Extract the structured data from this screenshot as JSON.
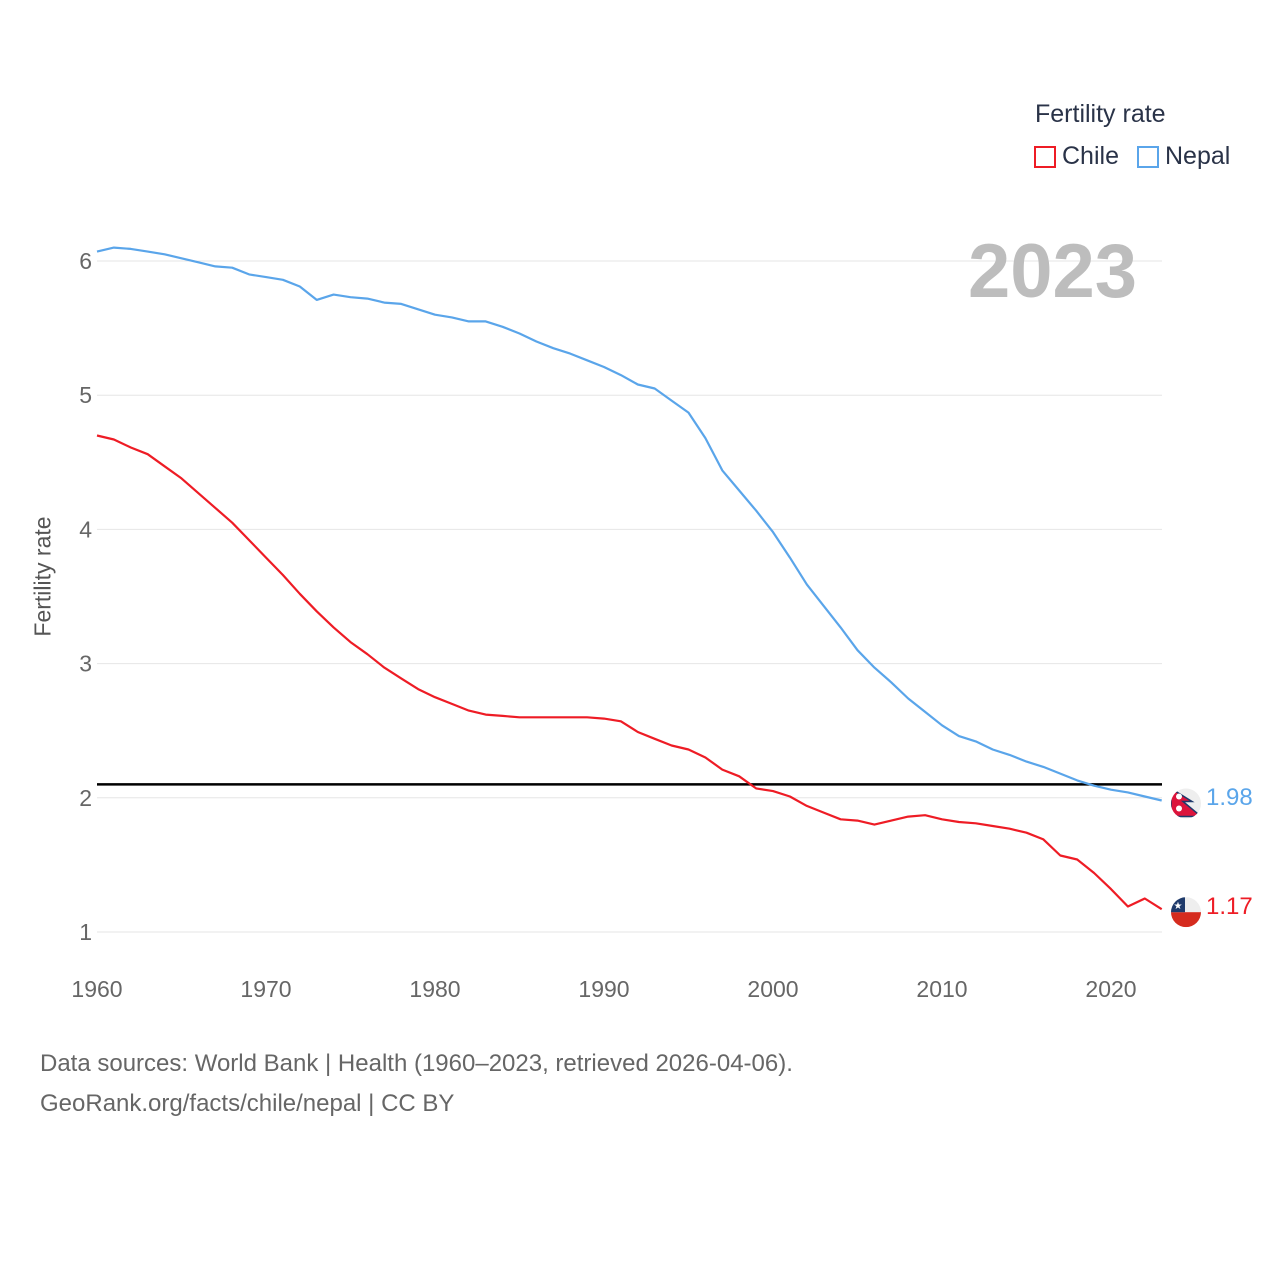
{
  "chart_data": {
    "type": "line",
    "title": "Fertility rate",
    "ylabel": "Fertility rate",
    "xlabel": "",
    "xlim": [
      1960,
      2023
    ],
    "ylim": [
      0.7,
      6.4
    ],
    "x_ticks": [
      1960,
      1970,
      1980,
      1990,
      2000,
      2010,
      2020
    ],
    "y_ticks": [
      1,
      2,
      3,
      4,
      5,
      6
    ],
    "grid": true,
    "legend_placement": "top-right",
    "current_year": "2023",
    "reference_line": 2.1,
    "x": [
      1960,
      1961,
      1962,
      1963,
      1964,
      1965,
      1966,
      1967,
      1968,
      1969,
      1970,
      1971,
      1972,
      1973,
      1974,
      1975,
      1976,
      1977,
      1978,
      1979,
      1980,
      1981,
      1982,
      1983,
      1984,
      1985,
      1986,
      1987,
      1988,
      1989,
      1990,
      1991,
      1992,
      1993,
      1994,
      1995,
      1996,
      1997,
      1998,
      1999,
      2000,
      2001,
      2002,
      2003,
      2004,
      2005,
      2006,
      2007,
      2008,
      2009,
      2010,
      2011,
      2012,
      2013,
      2014,
      2015,
      2016,
      2017,
      2018,
      2019,
      2020,
      2021,
      2022,
      2023
    ],
    "series": [
      {
        "name": "Chile",
        "color": "#ee1c25",
        "end_label": "1.17",
        "values": [
          4.7,
          4.67,
          4.61,
          4.56,
          4.47,
          4.38,
          4.27,
          4.16,
          4.05,
          3.92,
          3.79,
          3.66,
          3.52,
          3.39,
          3.27,
          3.16,
          3.07,
          2.97,
          2.89,
          2.81,
          2.75,
          2.7,
          2.65,
          2.62,
          2.61,
          2.6,
          2.6,
          2.6,
          2.6,
          2.6,
          2.59,
          2.57,
          2.49,
          2.44,
          2.39,
          2.36,
          2.3,
          2.21,
          2.16,
          2.07,
          2.05,
          2.01,
          1.94,
          1.89,
          1.84,
          1.83,
          1.8,
          1.83,
          1.86,
          1.87,
          1.84,
          1.82,
          1.81,
          1.79,
          1.77,
          1.74,
          1.69,
          1.57,
          1.54,
          1.44,
          1.32,
          1.19,
          1.25,
          1.17
        ]
      },
      {
        "name": "Nepal",
        "color": "#5aa5ea",
        "end_label": "1.98",
        "values": [
          6.07,
          6.1,
          6.09,
          6.07,
          6.05,
          6.02,
          5.99,
          5.96,
          5.95,
          5.9,
          5.88,
          5.86,
          5.81,
          5.71,
          5.75,
          5.73,
          5.72,
          5.69,
          5.68,
          5.64,
          5.6,
          5.58,
          5.55,
          5.55,
          5.51,
          5.46,
          5.4,
          5.35,
          5.31,
          5.26,
          5.21,
          5.15,
          5.08,
          5.05,
          4.96,
          4.87,
          4.68,
          4.44,
          4.29,
          4.14,
          3.98,
          3.79,
          3.59,
          3.43,
          3.27,
          3.1,
          2.97,
          2.86,
          2.74,
          2.64,
          2.54,
          2.46,
          2.42,
          2.36,
          2.32,
          2.27,
          2.23,
          2.18,
          2.13,
          2.09,
          2.06,
          2.04,
          2.01,
          1.98
        ]
      }
    ]
  },
  "footer": {
    "line1": "Data sources: World Bank | Health (1960–2023, retrieved 2026-04-06).",
    "line2": "GeoRank.org/facts/chile/nepal | CC BY"
  }
}
